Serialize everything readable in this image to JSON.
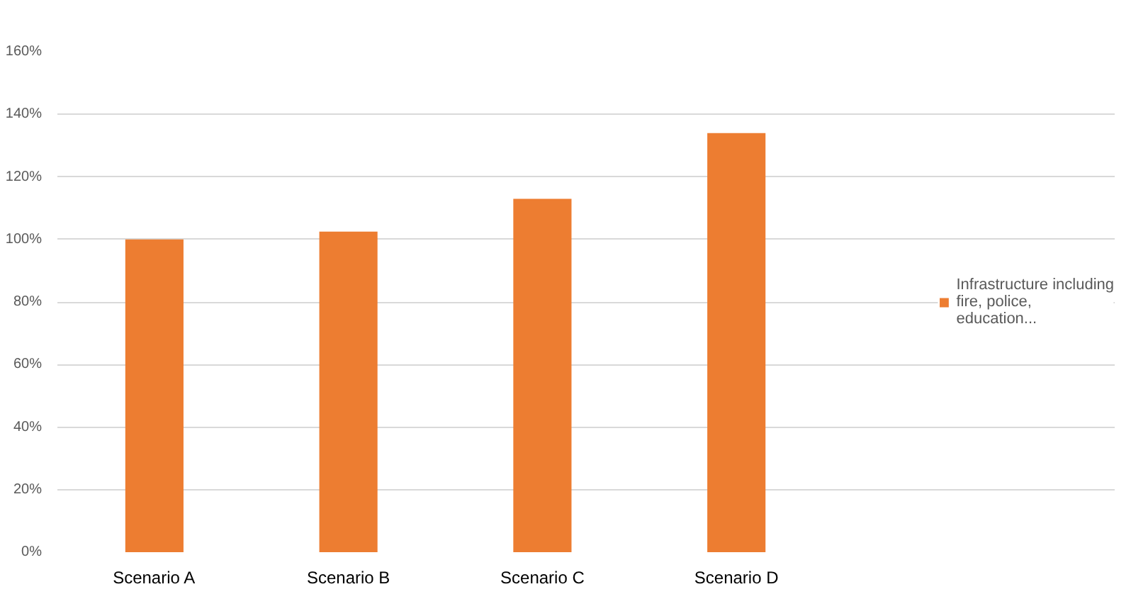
{
  "chart_data": {
    "type": "bar",
    "categories": [
      "Scenario A",
      "Scenario B",
      "Scenario C",
      "Scenario D"
    ],
    "series": [
      {
        "name": "Infrastructure including fire, police, education...",
        "color": "#ed7d31",
        "values": [
          100,
          102.5,
          113,
          134
        ]
      }
    ],
    "ylim": [
      0,
      160
    ],
    "yticks": [
      {
        "value": 0,
        "label": "0%"
      },
      {
        "value": 20,
        "label": "20%"
      },
      {
        "value": 40,
        "label": "40%"
      },
      {
        "value": 60,
        "label": "60%"
      },
      {
        "value": 80,
        "label": "80%"
      },
      {
        "value": 100,
        "label": "100%"
      },
      {
        "value": 120,
        "label": "120%"
      },
      {
        "value": 140,
        "label": "140%"
      },
      {
        "value": 160,
        "label": "160%"
      }
    ],
    "grid": "y",
    "legend": "right"
  }
}
